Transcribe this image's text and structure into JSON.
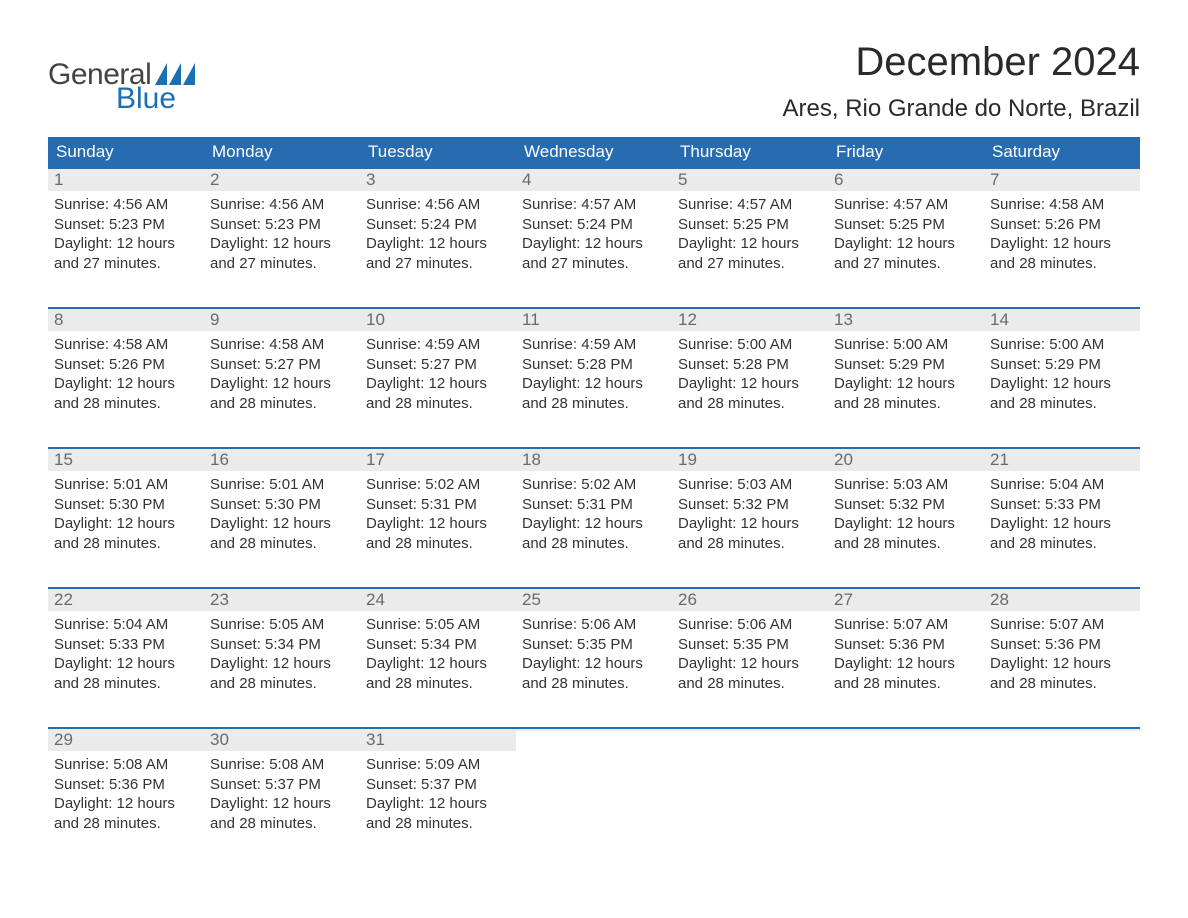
{
  "logo": {
    "word1": "General",
    "word2": "Blue",
    "flag_color": "#1b6fb3"
  },
  "header": {
    "month_title": "December 2024",
    "location": "Ares, Rio Grande do Norte, Brazil"
  },
  "colors": {
    "header_bg": "#276bb0",
    "header_text": "#ffffff",
    "daynum_bg": "#ebebeb",
    "daynum_text": "#6a6a6a",
    "body_text": "#333333",
    "week_border": "#276bb0",
    "page_bg": "#ffffff"
  },
  "calendar": {
    "days_of_week": [
      "Sunday",
      "Monday",
      "Tuesday",
      "Wednesday",
      "Thursday",
      "Friday",
      "Saturday"
    ],
    "weeks": [
      [
        {
          "n": "1",
          "sunrise": "Sunrise: 4:56 AM",
          "sunset": "Sunset: 5:23 PM",
          "dl1": "Daylight: 12 hours",
          "dl2": "and 27 minutes."
        },
        {
          "n": "2",
          "sunrise": "Sunrise: 4:56 AM",
          "sunset": "Sunset: 5:23 PM",
          "dl1": "Daylight: 12 hours",
          "dl2": "and 27 minutes."
        },
        {
          "n": "3",
          "sunrise": "Sunrise: 4:56 AM",
          "sunset": "Sunset: 5:24 PM",
          "dl1": "Daylight: 12 hours",
          "dl2": "and 27 minutes."
        },
        {
          "n": "4",
          "sunrise": "Sunrise: 4:57 AM",
          "sunset": "Sunset: 5:24 PM",
          "dl1": "Daylight: 12 hours",
          "dl2": "and 27 minutes."
        },
        {
          "n": "5",
          "sunrise": "Sunrise: 4:57 AM",
          "sunset": "Sunset: 5:25 PM",
          "dl1": "Daylight: 12 hours",
          "dl2": "and 27 minutes."
        },
        {
          "n": "6",
          "sunrise": "Sunrise: 4:57 AM",
          "sunset": "Sunset: 5:25 PM",
          "dl1": "Daylight: 12 hours",
          "dl2": "and 27 minutes."
        },
        {
          "n": "7",
          "sunrise": "Sunrise: 4:58 AM",
          "sunset": "Sunset: 5:26 PM",
          "dl1": "Daylight: 12 hours",
          "dl2": "and 28 minutes."
        }
      ],
      [
        {
          "n": "8",
          "sunrise": "Sunrise: 4:58 AM",
          "sunset": "Sunset: 5:26 PM",
          "dl1": "Daylight: 12 hours",
          "dl2": "and 28 minutes."
        },
        {
          "n": "9",
          "sunrise": "Sunrise: 4:58 AM",
          "sunset": "Sunset: 5:27 PM",
          "dl1": "Daylight: 12 hours",
          "dl2": "and 28 minutes."
        },
        {
          "n": "10",
          "sunrise": "Sunrise: 4:59 AM",
          "sunset": "Sunset: 5:27 PM",
          "dl1": "Daylight: 12 hours",
          "dl2": "and 28 minutes."
        },
        {
          "n": "11",
          "sunrise": "Sunrise: 4:59 AM",
          "sunset": "Sunset: 5:28 PM",
          "dl1": "Daylight: 12 hours",
          "dl2": "and 28 minutes."
        },
        {
          "n": "12",
          "sunrise": "Sunrise: 5:00 AM",
          "sunset": "Sunset: 5:28 PM",
          "dl1": "Daylight: 12 hours",
          "dl2": "and 28 minutes."
        },
        {
          "n": "13",
          "sunrise": "Sunrise: 5:00 AM",
          "sunset": "Sunset: 5:29 PM",
          "dl1": "Daylight: 12 hours",
          "dl2": "and 28 minutes."
        },
        {
          "n": "14",
          "sunrise": "Sunrise: 5:00 AM",
          "sunset": "Sunset: 5:29 PM",
          "dl1": "Daylight: 12 hours",
          "dl2": "and 28 minutes."
        }
      ],
      [
        {
          "n": "15",
          "sunrise": "Sunrise: 5:01 AM",
          "sunset": "Sunset: 5:30 PM",
          "dl1": "Daylight: 12 hours",
          "dl2": "and 28 minutes."
        },
        {
          "n": "16",
          "sunrise": "Sunrise: 5:01 AM",
          "sunset": "Sunset: 5:30 PM",
          "dl1": "Daylight: 12 hours",
          "dl2": "and 28 minutes."
        },
        {
          "n": "17",
          "sunrise": "Sunrise: 5:02 AM",
          "sunset": "Sunset: 5:31 PM",
          "dl1": "Daylight: 12 hours",
          "dl2": "and 28 minutes."
        },
        {
          "n": "18",
          "sunrise": "Sunrise: 5:02 AM",
          "sunset": "Sunset: 5:31 PM",
          "dl1": "Daylight: 12 hours",
          "dl2": "and 28 minutes."
        },
        {
          "n": "19",
          "sunrise": "Sunrise: 5:03 AM",
          "sunset": "Sunset: 5:32 PM",
          "dl1": "Daylight: 12 hours",
          "dl2": "and 28 minutes."
        },
        {
          "n": "20",
          "sunrise": "Sunrise: 5:03 AM",
          "sunset": "Sunset: 5:32 PM",
          "dl1": "Daylight: 12 hours",
          "dl2": "and 28 minutes."
        },
        {
          "n": "21",
          "sunrise": "Sunrise: 5:04 AM",
          "sunset": "Sunset: 5:33 PM",
          "dl1": "Daylight: 12 hours",
          "dl2": "and 28 minutes."
        }
      ],
      [
        {
          "n": "22",
          "sunrise": "Sunrise: 5:04 AM",
          "sunset": "Sunset: 5:33 PM",
          "dl1": "Daylight: 12 hours",
          "dl2": "and 28 minutes."
        },
        {
          "n": "23",
          "sunrise": "Sunrise: 5:05 AM",
          "sunset": "Sunset: 5:34 PM",
          "dl1": "Daylight: 12 hours",
          "dl2": "and 28 minutes."
        },
        {
          "n": "24",
          "sunrise": "Sunrise: 5:05 AM",
          "sunset": "Sunset: 5:34 PM",
          "dl1": "Daylight: 12 hours",
          "dl2": "and 28 minutes."
        },
        {
          "n": "25",
          "sunrise": "Sunrise: 5:06 AM",
          "sunset": "Sunset: 5:35 PM",
          "dl1": "Daylight: 12 hours",
          "dl2": "and 28 minutes."
        },
        {
          "n": "26",
          "sunrise": "Sunrise: 5:06 AM",
          "sunset": "Sunset: 5:35 PM",
          "dl1": "Daylight: 12 hours",
          "dl2": "and 28 minutes."
        },
        {
          "n": "27",
          "sunrise": "Sunrise: 5:07 AM",
          "sunset": "Sunset: 5:36 PM",
          "dl1": "Daylight: 12 hours",
          "dl2": "and 28 minutes."
        },
        {
          "n": "28",
          "sunrise": "Sunrise: 5:07 AM",
          "sunset": "Sunset: 5:36 PM",
          "dl1": "Daylight: 12 hours",
          "dl2": "and 28 minutes."
        }
      ],
      [
        {
          "n": "29",
          "sunrise": "Sunrise: 5:08 AM",
          "sunset": "Sunset: 5:36 PM",
          "dl1": "Daylight: 12 hours",
          "dl2": "and 28 minutes."
        },
        {
          "n": "30",
          "sunrise": "Sunrise: 5:08 AM",
          "sunset": "Sunset: 5:37 PM",
          "dl1": "Daylight: 12 hours",
          "dl2": "and 28 minutes."
        },
        {
          "n": "31",
          "sunrise": "Sunrise: 5:09 AM",
          "sunset": "Sunset: 5:37 PM",
          "dl1": "Daylight: 12 hours",
          "dl2": "and 28 minutes."
        },
        {
          "n": "",
          "sunrise": "",
          "sunset": "",
          "dl1": "",
          "dl2": ""
        },
        {
          "n": "",
          "sunrise": "",
          "sunset": "",
          "dl1": "",
          "dl2": ""
        },
        {
          "n": "",
          "sunrise": "",
          "sunset": "",
          "dl1": "",
          "dl2": ""
        },
        {
          "n": "",
          "sunrise": "",
          "sunset": "",
          "dl1": "",
          "dl2": ""
        }
      ]
    ]
  }
}
